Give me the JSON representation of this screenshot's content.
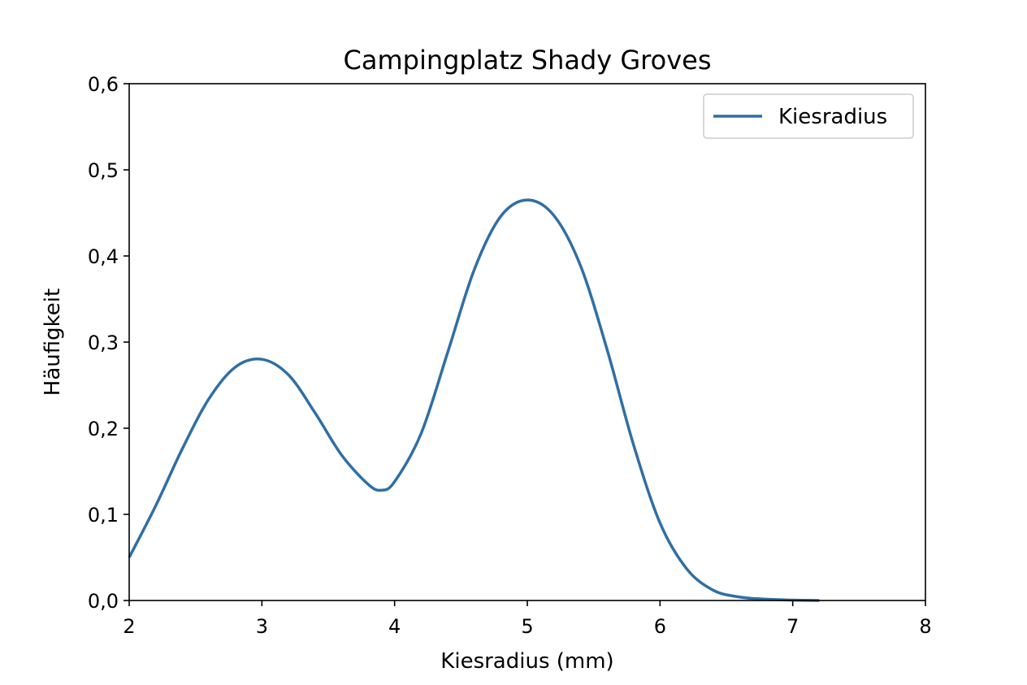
{
  "chart_data": {
    "type": "line",
    "title": "Campingplatz Shady Groves",
    "xlabel": "Kiesradius (mm)",
    "ylabel": "Häufigkeit",
    "xlim": [
      2,
      8
    ],
    "ylim": [
      0,
      0.6
    ],
    "x_ticks": [
      "2",
      "3",
      "4",
      "5",
      "6",
      "7",
      "8"
    ],
    "y_ticks": [
      "0,0",
      "0,1",
      "0,2",
      "0,3",
      "0,4",
      "0,5",
      "0,6"
    ],
    "legend": {
      "position": "top-right",
      "entries": [
        "Kiesradius"
      ]
    },
    "grid": false,
    "series": [
      {
        "name": "Kiesradius",
        "color": "#2f6fa5",
        "x": [
          2.0,
          2.2,
          2.4,
          2.6,
          2.8,
          3.0,
          3.2,
          3.4,
          3.6,
          3.8,
          3.9,
          4.0,
          4.2,
          4.4,
          4.6,
          4.8,
          5.0,
          5.2,
          5.4,
          5.6,
          5.8,
          6.0,
          6.2,
          6.4,
          6.6,
          6.8,
          7.0,
          7.2
        ],
        "y": [
          0.05,
          0.11,
          0.176,
          0.234,
          0.271,
          0.28,
          0.262,
          0.218,
          0.169,
          0.135,
          0.128,
          0.138,
          0.194,
          0.288,
          0.384,
          0.446,
          0.465,
          0.447,
          0.389,
          0.292,
          0.181,
          0.09,
          0.037,
          0.012,
          0.004,
          0.0015,
          0.0005,
          0.0
        ]
      }
    ]
  }
}
